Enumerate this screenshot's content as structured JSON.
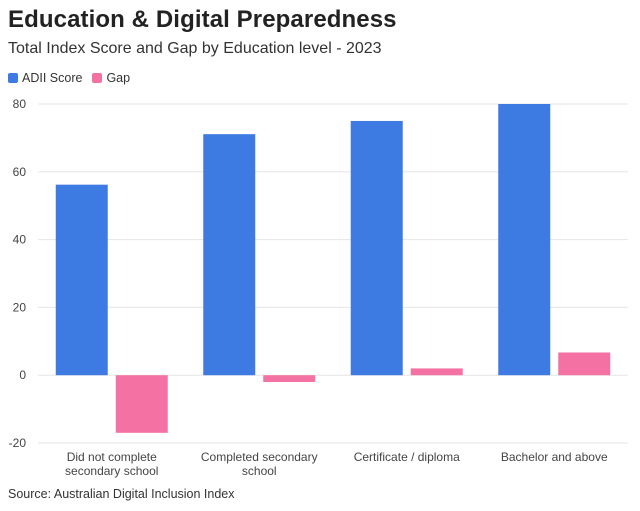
{
  "title": "Education & Digital Preparedness",
  "subtitle": "Total Index Score and Gap by Education level - 2023",
  "source": "Source: Australian Digital Inclusion Index",
  "legend": [
    {
      "label": "ADII Score",
      "color": "#3d7be3"
    },
    {
      "label": "Gap",
      "color": "#f472a3"
    }
  ],
  "chart_data": {
    "type": "bar",
    "title": "Education & Digital Preparedness",
    "subtitle": "Total Index Score and Gap by Education level - 2023",
    "xlabel": "",
    "ylabel": "",
    "ylim": [
      -20,
      80
    ],
    "yticks": [
      -20,
      0,
      20,
      40,
      60,
      80
    ],
    "grid": true,
    "legend_position": "top-left",
    "categories": [
      [
        "Did not complete",
        "secondary school"
      ],
      [
        "Completed secondary",
        "school"
      ],
      [
        "Certificate / diploma"
      ],
      [
        "Bachelor and above"
      ]
    ],
    "series": [
      {
        "name": "ADII Score",
        "color": "#3d7be3",
        "values": [
          56.2,
          71.1,
          75.0,
          80.0
        ]
      },
      {
        "name": "Gap",
        "color": "#f472a3",
        "values": [
          -17.0,
          -2.0,
          2.0,
          6.7
        ]
      }
    ]
  }
}
